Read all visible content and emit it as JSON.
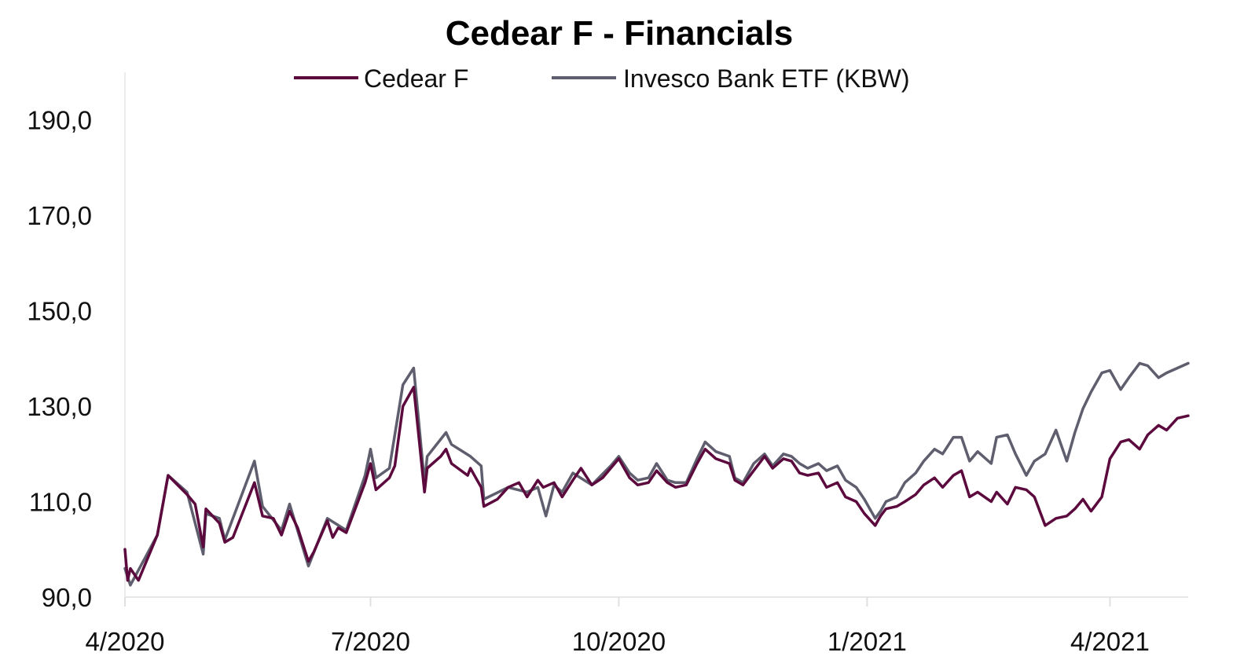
{
  "chart_data": {
    "type": "line",
    "title": "Cedear F - Financials",
    "xlabel": "",
    "ylabel": "",
    "ylim": [
      90,
      200
    ],
    "yticks": [
      90,
      110,
      130,
      150,
      170,
      190
    ],
    "ytick_labels": [
      "90,0",
      "110,0",
      "130,0",
      "150,0",
      "170,0",
      "190,0"
    ],
    "xlim": [
      "2020-04-01",
      "2021-04-30"
    ],
    "xticks": [
      "2020-04-01",
      "2020-07-01",
      "2020-10-01",
      "2021-01-01",
      "2021-04-01"
    ],
    "xtick_labels": [
      "4/2020",
      "7/2020",
      "10/2020",
      "1/2021",
      "4/2021"
    ],
    "grid": false,
    "legend": "top-center",
    "series": [
      {
        "name": "Cedear F",
        "color": "#5C0A3E",
        "points": [
          [
            "2020-04-01",
            100.0
          ],
          [
            "2020-04-02",
            93.5
          ],
          [
            "2020-04-03",
            96.0
          ],
          [
            "2020-04-06",
            93.5
          ],
          [
            "2020-04-13",
            103.0
          ],
          [
            "2020-04-17",
            115.5
          ],
          [
            "2020-04-24",
            111.5
          ],
          [
            "2020-04-27",
            109.5
          ],
          [
            "2020-04-30",
            100.5
          ],
          [
            "2020-05-01",
            108.5
          ],
          [
            "2020-05-06",
            105.5
          ],
          [
            "2020-05-08",
            101.5
          ],
          [
            "2020-05-11",
            102.5
          ],
          [
            "2020-05-19",
            114.0
          ],
          [
            "2020-05-22",
            107.0
          ],
          [
            "2020-05-26",
            106.5
          ],
          [
            "2020-05-29",
            103.0
          ],
          [
            "2020-06-01",
            108.0
          ],
          [
            "2020-06-04",
            104.5
          ],
          [
            "2020-06-08",
            97.5
          ],
          [
            "2020-06-10",
            99.5
          ],
          [
            "2020-06-15",
            106.0
          ],
          [
            "2020-06-17",
            102.5
          ],
          [
            "2020-06-19",
            104.5
          ],
          [
            "2020-06-22",
            103.5
          ],
          [
            "2020-06-29",
            114.0
          ],
          [
            "2020-07-01",
            118.0
          ],
          [
            "2020-07-03",
            112.5
          ],
          [
            "2020-07-08",
            115.0
          ],
          [
            "2020-07-10",
            117.5
          ],
          [
            "2020-07-13",
            130.0
          ],
          [
            "2020-07-17",
            134.0
          ],
          [
            "2020-07-21",
            112.0
          ],
          [
            "2020-07-22",
            117.0
          ],
          [
            "2020-07-27",
            119.5
          ],
          [
            "2020-07-29",
            121.0
          ],
          [
            "2020-07-31",
            118.0
          ],
          [
            "2020-08-06",
            115.5
          ],
          [
            "2020-08-07",
            117.0
          ],
          [
            "2020-08-11",
            113.0
          ],
          [
            "2020-08-12",
            109.0
          ],
          [
            "2020-08-17",
            110.5
          ],
          [
            "2020-08-21",
            113.0
          ],
          [
            "2020-08-25",
            114.0
          ],
          [
            "2020-08-28",
            111.0
          ],
          [
            "2020-09-01",
            114.5
          ],
          [
            "2020-09-03",
            113.0
          ],
          [
            "2020-09-07",
            114.0
          ],
          [
            "2020-09-10",
            111.0
          ],
          [
            "2020-09-14",
            114.5
          ],
          [
            "2020-09-17",
            117.0
          ],
          [
            "2020-09-21",
            113.5
          ],
          [
            "2020-09-25",
            115.0
          ],
          [
            "2020-09-28",
            117.0
          ],
          [
            "2020-10-01",
            119.0
          ],
          [
            "2020-10-05",
            115.0
          ],
          [
            "2020-10-08",
            113.5
          ],
          [
            "2020-10-12",
            114.0
          ],
          [
            "2020-10-15",
            116.5
          ],
          [
            "2020-10-19",
            114.0
          ],
          [
            "2020-10-22",
            113.0
          ],
          [
            "2020-10-26",
            113.5
          ],
          [
            "2020-10-30",
            118.0
          ],
          [
            "2020-11-02",
            121.0
          ],
          [
            "2020-11-06",
            119.0
          ],
          [
            "2020-11-11",
            118.0
          ],
          [
            "2020-11-13",
            114.5
          ],
          [
            "2020-11-16",
            113.5
          ],
          [
            "2020-11-20",
            116.5
          ],
          [
            "2020-11-24",
            119.5
          ],
          [
            "2020-11-27",
            117.0
          ],
          [
            "2020-12-01",
            119.0
          ],
          [
            "2020-12-04",
            118.5
          ],
          [
            "2020-12-07",
            116.0
          ],
          [
            "2020-12-10",
            115.5
          ],
          [
            "2020-12-14",
            116.0
          ],
          [
            "2020-12-17",
            113.0
          ],
          [
            "2020-12-21",
            114.0
          ],
          [
            "2020-12-24",
            111.0
          ],
          [
            "2020-12-28",
            110.0
          ],
          [
            "2020-12-31",
            107.5
          ],
          [
            "2021-01-04",
            105.0
          ],
          [
            "2021-01-06",
            107.0
          ],
          [
            "2021-01-08",
            108.5
          ],
          [
            "2021-01-12",
            109.0
          ],
          [
            "2021-01-15",
            110.0
          ],
          [
            "2021-01-19",
            111.5
          ],
          [
            "2021-01-22",
            113.5
          ],
          [
            "2021-01-26",
            115.0
          ],
          [
            "2021-01-29",
            113.0
          ],
          [
            "2021-02-02",
            115.5
          ],
          [
            "2021-02-05",
            116.5
          ],
          [
            "2021-02-08",
            111.0
          ],
          [
            "2021-02-11",
            112.0
          ],
          [
            "2021-02-16",
            110.0
          ],
          [
            "2021-02-18",
            112.0
          ],
          [
            "2021-02-22",
            109.5
          ],
          [
            "2021-02-25",
            113.0
          ],
          [
            "2021-03-01",
            112.5
          ],
          [
            "2021-03-04",
            111.0
          ],
          [
            "2021-03-08",
            105.0
          ],
          [
            "2021-03-12",
            106.5
          ],
          [
            "2021-03-16",
            107.0
          ],
          [
            "2021-03-19",
            108.5
          ],
          [
            "2021-03-22",
            110.5
          ],
          [
            "2021-03-25",
            108.0
          ],
          [
            "2021-03-29",
            111.0
          ],
          [
            "2021-04-01",
            119.0
          ],
          [
            "2021-04-05",
            122.5
          ],
          [
            "2021-04-08",
            123.0
          ],
          [
            "2021-04-12",
            121.0
          ],
          [
            "2021-04-15",
            124.0
          ],
          [
            "2021-04-19",
            126.0
          ],
          [
            "2021-04-22",
            125.0
          ],
          [
            "2021-04-26",
            127.5
          ],
          [
            "2021-04-30",
            128.0
          ]
        ]
      },
      {
        "name": "Invesco Bank ETF (KBW)",
        "color": "#5E5E6E",
        "points": [
          [
            "2020-04-01",
            96.0
          ],
          [
            "2020-04-03",
            92.5
          ],
          [
            "2020-04-13",
            103.0
          ],
          [
            "2020-04-17",
            115.5
          ],
          [
            "2020-04-24",
            112.0
          ],
          [
            "2020-04-30",
            99.0
          ],
          [
            "2020-05-01",
            107.5
          ],
          [
            "2020-05-06",
            106.5
          ],
          [
            "2020-05-08",
            102.0
          ],
          [
            "2020-05-19",
            118.5
          ],
          [
            "2020-05-22",
            109.0
          ],
          [
            "2020-05-29",
            104.0
          ],
          [
            "2020-06-01",
            109.5
          ],
          [
            "2020-06-08",
            96.5
          ],
          [
            "2020-06-15",
            106.5
          ],
          [
            "2020-06-22",
            104.0
          ],
          [
            "2020-06-29",
            115.5
          ],
          [
            "2020-07-01",
            121.0
          ],
          [
            "2020-07-03",
            115.0
          ],
          [
            "2020-07-08",
            117.0
          ],
          [
            "2020-07-13",
            134.5
          ],
          [
            "2020-07-17",
            138.0
          ],
          [
            "2020-07-21",
            114.0
          ],
          [
            "2020-07-22",
            119.5
          ],
          [
            "2020-07-29",
            124.5
          ],
          [
            "2020-07-31",
            122.0
          ],
          [
            "2020-08-07",
            119.5
          ],
          [
            "2020-08-11",
            117.5
          ],
          [
            "2020-08-12",
            110.5
          ],
          [
            "2020-08-21",
            113.0
          ],
          [
            "2020-08-28",
            112.0
          ],
          [
            "2020-09-01",
            113.0
          ],
          [
            "2020-09-04",
            107.0
          ],
          [
            "2020-09-07",
            113.5
          ],
          [
            "2020-09-10",
            112.0
          ],
          [
            "2020-09-14",
            116.0
          ],
          [
            "2020-09-21",
            113.5
          ],
          [
            "2020-09-28",
            117.5
          ],
          [
            "2020-10-01",
            119.5
          ],
          [
            "2020-10-05",
            116.0
          ],
          [
            "2020-10-08",
            114.5
          ],
          [
            "2020-10-12",
            115.0
          ],
          [
            "2020-10-15",
            118.0
          ],
          [
            "2020-10-19",
            114.5
          ],
          [
            "2020-10-22",
            114.0
          ],
          [
            "2020-10-26",
            114.0
          ],
          [
            "2020-10-30",
            119.0
          ],
          [
            "2020-11-02",
            122.5
          ],
          [
            "2020-11-06",
            120.5
          ],
          [
            "2020-11-11",
            119.5
          ],
          [
            "2020-11-13",
            115.0
          ],
          [
            "2020-11-16",
            114.0
          ],
          [
            "2020-11-20",
            118.0
          ],
          [
            "2020-11-24",
            120.0
          ],
          [
            "2020-11-27",
            117.5
          ],
          [
            "2020-12-01",
            120.0
          ],
          [
            "2020-12-04",
            119.5
          ],
          [
            "2020-12-07",
            118.0
          ],
          [
            "2020-12-10",
            117.0
          ],
          [
            "2020-12-14",
            118.0
          ],
          [
            "2020-12-17",
            116.5
          ],
          [
            "2020-12-21",
            117.5
          ],
          [
            "2020-12-24",
            114.5
          ],
          [
            "2020-12-28",
            113.0
          ],
          [
            "2020-12-31",
            110.5
          ],
          [
            "2021-01-04",
            106.5
          ],
          [
            "2021-01-06",
            108.0
          ],
          [
            "2021-01-08",
            110.0
          ],
          [
            "2021-01-12",
            111.0
          ],
          [
            "2021-01-15",
            114.0
          ],
          [
            "2021-01-19",
            116.0
          ],
          [
            "2021-01-22",
            118.5
          ],
          [
            "2021-01-26",
            121.0
          ],
          [
            "2021-01-29",
            120.0
          ],
          [
            "2021-02-02",
            123.5
          ],
          [
            "2021-02-05",
            123.5
          ],
          [
            "2021-02-08",
            118.5
          ],
          [
            "2021-02-11",
            120.5
          ],
          [
            "2021-02-16",
            118.0
          ],
          [
            "2021-02-18",
            123.5
          ],
          [
            "2021-02-22",
            124.0
          ],
          [
            "2021-02-25",
            120.0
          ],
          [
            "2021-03-01",
            115.5
          ],
          [
            "2021-03-04",
            118.5
          ],
          [
            "2021-03-08",
            120.0
          ],
          [
            "2021-03-12",
            125.0
          ],
          [
            "2021-03-16",
            118.5
          ],
          [
            "2021-03-19",
            124.5
          ],
          [
            "2021-03-22",
            129.5
          ],
          [
            "2021-03-25",
            133.0
          ],
          [
            "2021-03-29",
            137.0
          ],
          [
            "2021-04-01",
            137.5
          ],
          [
            "2021-04-05",
            133.5
          ],
          [
            "2021-04-08",
            136.0
          ],
          [
            "2021-04-12",
            139.0
          ],
          [
            "2021-04-15",
            138.5
          ],
          [
            "2021-04-19",
            136.0
          ],
          [
            "2021-04-22",
            137.0
          ],
          [
            "2021-04-26",
            138.0
          ],
          [
            "2021-04-30",
            139.0
          ]
        ]
      }
    ]
  }
}
